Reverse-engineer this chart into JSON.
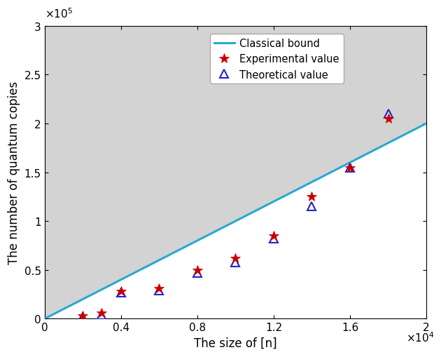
{
  "title": "",
  "xlabel": "The size of [n]",
  "ylabel": "The number of quantum copies",
  "xlim": [
    0,
    20000
  ],
  "ylim": [
    0,
    300000
  ],
  "xtick_vals": [
    0,
    4000,
    8000,
    12000,
    16000,
    20000
  ],
  "xtick_labels": [
    "0",
    "0.4",
    "0.8",
    "1.2",
    "1.6",
    "2"
  ],
  "ytick_vals": [
    0,
    50000,
    100000,
    150000,
    200000,
    250000,
    300000
  ],
  "ytick_labels": [
    "0",
    "0.5",
    "1",
    "1.5",
    "2",
    "2.5",
    "3"
  ],
  "classical_slope": 10.0,
  "background_color": "#d3d3d3",
  "white_color": "#ffffff",
  "exp_color": "#cc0000",
  "theo_color": "#2222cc",
  "line_color": "#29a9d0",
  "exp_x": [
    2000,
    3000,
    4000,
    6000,
    8000,
    10000,
    12000,
    14000,
    16000,
    18000
  ],
  "exp_y": [
    3500,
    6000,
    28000,
    31000,
    50000,
    62000,
    85000,
    125000,
    155000,
    205000
  ],
  "theo_x": [
    2000,
    3000,
    4000,
    6000,
    8000,
    10000,
    12000,
    14000,
    16000,
    18000
  ],
  "theo_y": [
    2000,
    4000,
    27000,
    29000,
    47000,
    58000,
    82000,
    115000,
    155000,
    210000
  ],
  "legend_labels": [
    "Experimental value",
    "Theoretical value",
    "Classical bound"
  ]
}
